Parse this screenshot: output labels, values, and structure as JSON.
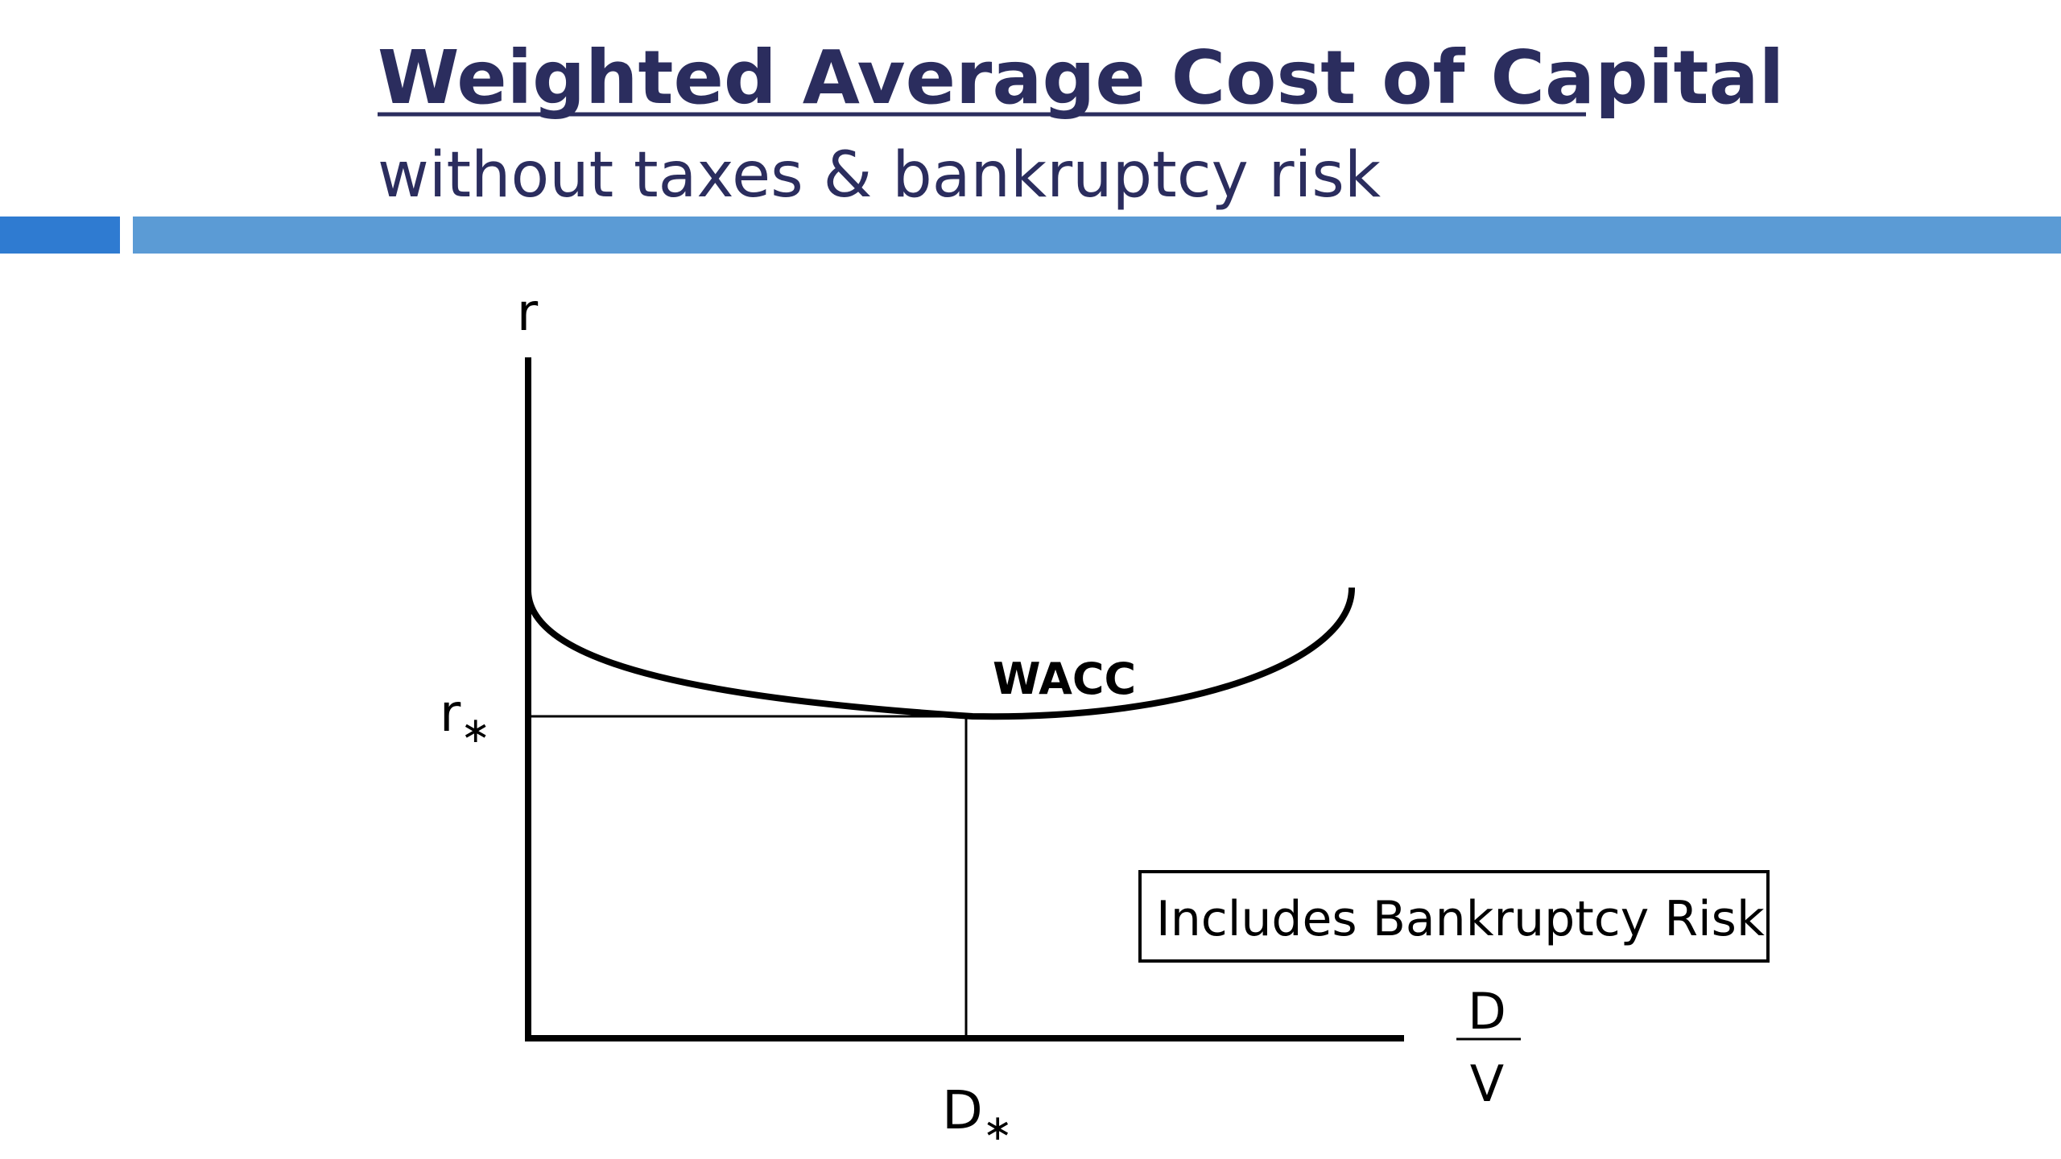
{
  "header": {
    "title": "Weighted Average Cost of Capital",
    "subtitle": "without taxes & bankruptcy risk"
  },
  "diagram": {
    "y_axis_label": "r",
    "r_star": {
      "main": "r",
      "sub": "∗"
    },
    "curve_label": "WACC",
    "d_star": {
      "main": "D",
      "sub": "∗"
    },
    "x_axis_label": {
      "numerator": "D",
      "denominator": "V"
    },
    "note": "Includes Bankruptcy Risk"
  }
}
